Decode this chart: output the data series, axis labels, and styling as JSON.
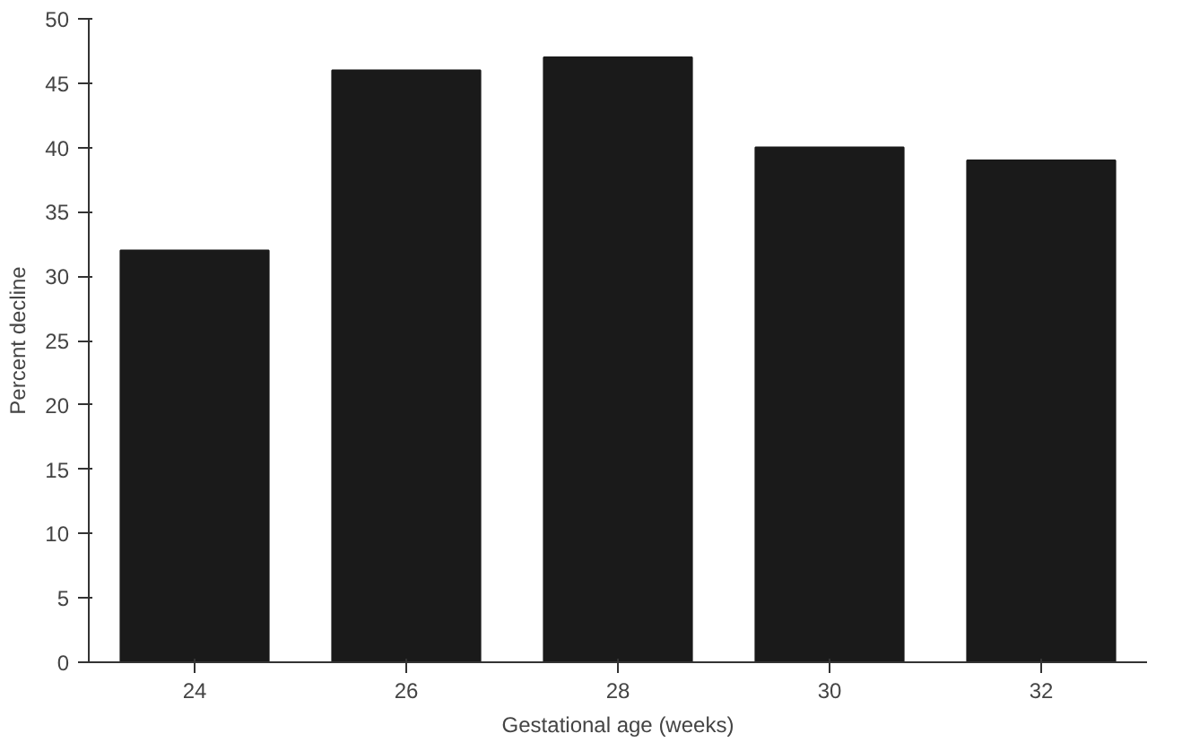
{
  "chart_data": {
    "type": "bar",
    "xlabel": "Gestational age (weeks)",
    "ylabel": "Percent decline",
    "categories": [
      "24",
      "26",
      "28",
      "30",
      "32"
    ],
    "values": [
      32,
      46,
      47,
      40,
      39
    ],
    "color": "#1a1a1a",
    "ylim": [
      0,
      50
    ],
    "yticks": [
      0,
      5,
      10,
      15,
      20,
      25,
      30,
      35,
      40,
      45,
      50
    ],
    "grid": false
  }
}
